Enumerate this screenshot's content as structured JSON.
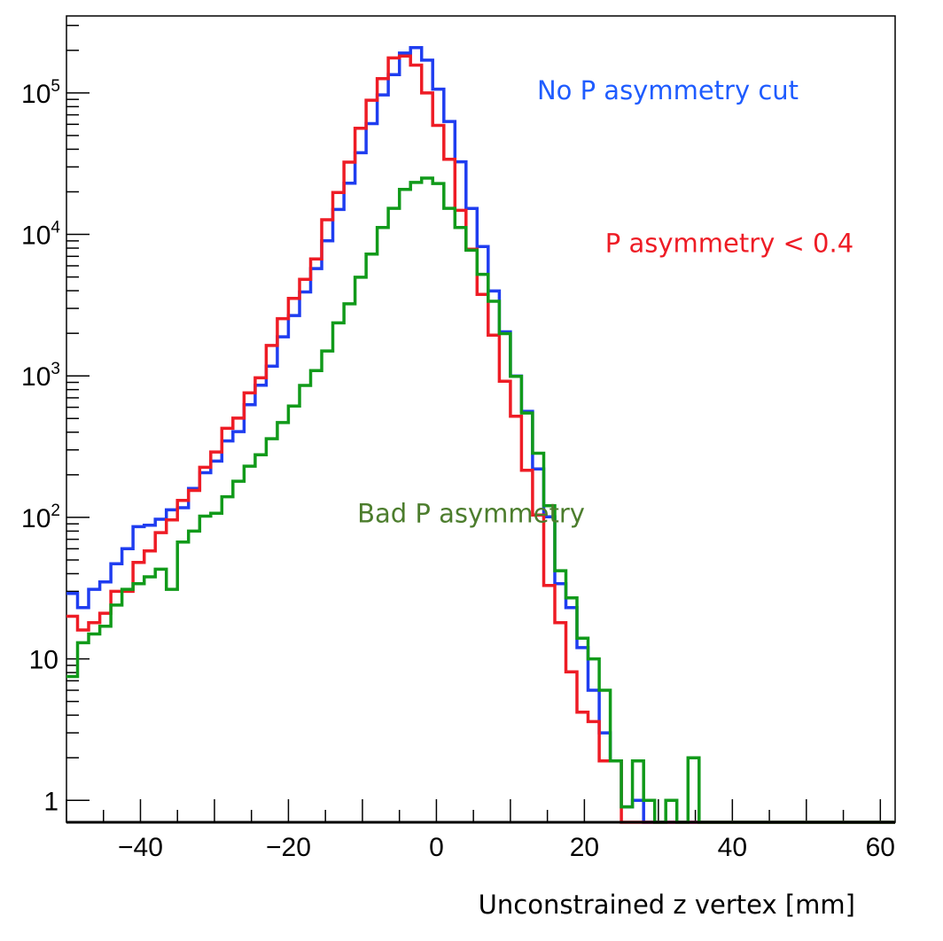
{
  "chart_data": {
    "type": "line",
    "step": true,
    "title": "",
    "xlabel": "Unconstrained z vertex [mm]",
    "ylabel": "",
    "xlim": [
      -50,
      62
    ],
    "ylim": [
      0.7,
      350000
    ],
    "yscale": "log",
    "grid": false,
    "x_ticks": [
      -40,
      -20,
      0,
      20,
      40,
      60
    ],
    "x_tick_labels": [
      "−40",
      "−20",
      "0",
      "20",
      "40",
      "60"
    ],
    "y_ticks": [
      {
        "value": 1,
        "base": "1",
        "exp": ""
      },
      {
        "value": 10,
        "base": "10",
        "exp": ""
      },
      {
        "value": 100,
        "base": "10",
        "exp": "2"
      },
      {
        "value": 1000,
        "base": "10",
        "exp": "3"
      },
      {
        "value": 10000,
        "base": "10",
        "exp": "4"
      },
      {
        "value": 100000,
        "base": "10",
        "exp": "5"
      }
    ],
    "bin_start": -50,
    "bin_width": 1.5,
    "series": [
      {
        "name": "No P asymmetry cut",
        "color": "#1f3df0",
        "values": [
          29,
          23,
          31,
          35,
          47,
          60,
          86,
          88,
          97,
          113,
          117,
          160,
          207,
          250,
          347,
          404,
          625,
          859,
          1170,
          1890,
          2670,
          3920,
          5740,
          9020,
          15010,
          23000,
          37780,
          60690,
          96800,
          134500,
          191400,
          208800,
          170500,
          106400,
          62800,
          32590,
          15270,
          8200,
          3980,
          2050,
          997,
          562,
          220,
          101,
          34,
          23,
          12,
          6,
          3,
          1.9,
          0.9,
          1,
          0.5,
          0.5,
          0.5,
          0.5,
          0.5,
          0.5,
          0.5,
          0.5,
          0.5,
          0.5,
          0.5,
          0.5,
          0.5,
          0.5,
          0.5,
          0.5,
          0.5,
          0.5,
          0.5,
          0.5,
          0.5,
          0.5,
          0.5
        ]
      },
      {
        "name": "P asymmetry < 0.4",
        "color": "#ee1c25",
        "values": [
          20,
          16,
          18,
          21,
          30,
          30,
          48,
          58,
          78,
          96,
          132,
          155,
          226,
          290,
          426,
          503,
          758,
          969,
          1640,
          2540,
          3530,
          4810,
          6710,
          12690,
          19800,
          32420,
          56310,
          88800,
          126000,
          176800,
          182100,
          157300,
          100000,
          59000,
          34010,
          14800,
          7850,
          3770,
          1940,
          918,
          519,
          215,
          104,
          33,
          18,
          8.1,
          4.2,
          3.6,
          1.9,
          1.9,
          0.5,
          0.5,
          0.5,
          0.5,
          0.5,
          0.5,
          0.5,
          0.5,
          0.5,
          0.5,
          0.5,
          0.5,
          0.5,
          0.5,
          0.5,
          0.5,
          0.5,
          0.5,
          0.5,
          0.5,
          0.5,
          0.5,
          0.5,
          0.5,
          0.5
        ]
      },
      {
        "name": "Bad P asymmetry",
        "color": "#119a1a",
        "values": [
          7.5,
          13,
          15,
          17,
          24,
          31,
          34,
          38,
          43,
          31,
          67,
          80,
          102,
          107,
          140,
          180,
          230,
          277,
          360,
          468,
          612,
          856,
          1090,
          1500,
          2370,
          3230,
          4980,
          7270,
          11180,
          15290,
          20800,
          23300,
          25000,
          22900,
          15290,
          11180,
          7730,
          5220,
          3370,
          1990,
          993,
          547,
          284,
          121,
          42,
          27,
          14,
          10,
          6,
          1.9,
          0.9,
          1.9,
          1,
          0.5,
          1,
          0.5,
          2,
          0.5,
          0.5,
          0.5,
          0.5,
          0.5,
          0.5,
          0.5,
          0.5,
          0.5,
          0.5,
          0.5,
          0.5,
          0.5,
          0.5,
          0.5,
          0.5,
          0.5,
          0.5
        ]
      }
    ],
    "annotations": [
      {
        "text": "No P asymmetry cut",
        "color": "#1f5cff",
        "x": 13.6,
        "y": 90000
      },
      {
        "text": "P asymmetry < 0.4",
        "color": "#ee1c25",
        "x": 22.8,
        "y": 7500
      },
      {
        "text": "Bad P asymmetry",
        "color": "#4c7d2d",
        "x": -10.7,
        "y": 92
      }
    ]
  }
}
